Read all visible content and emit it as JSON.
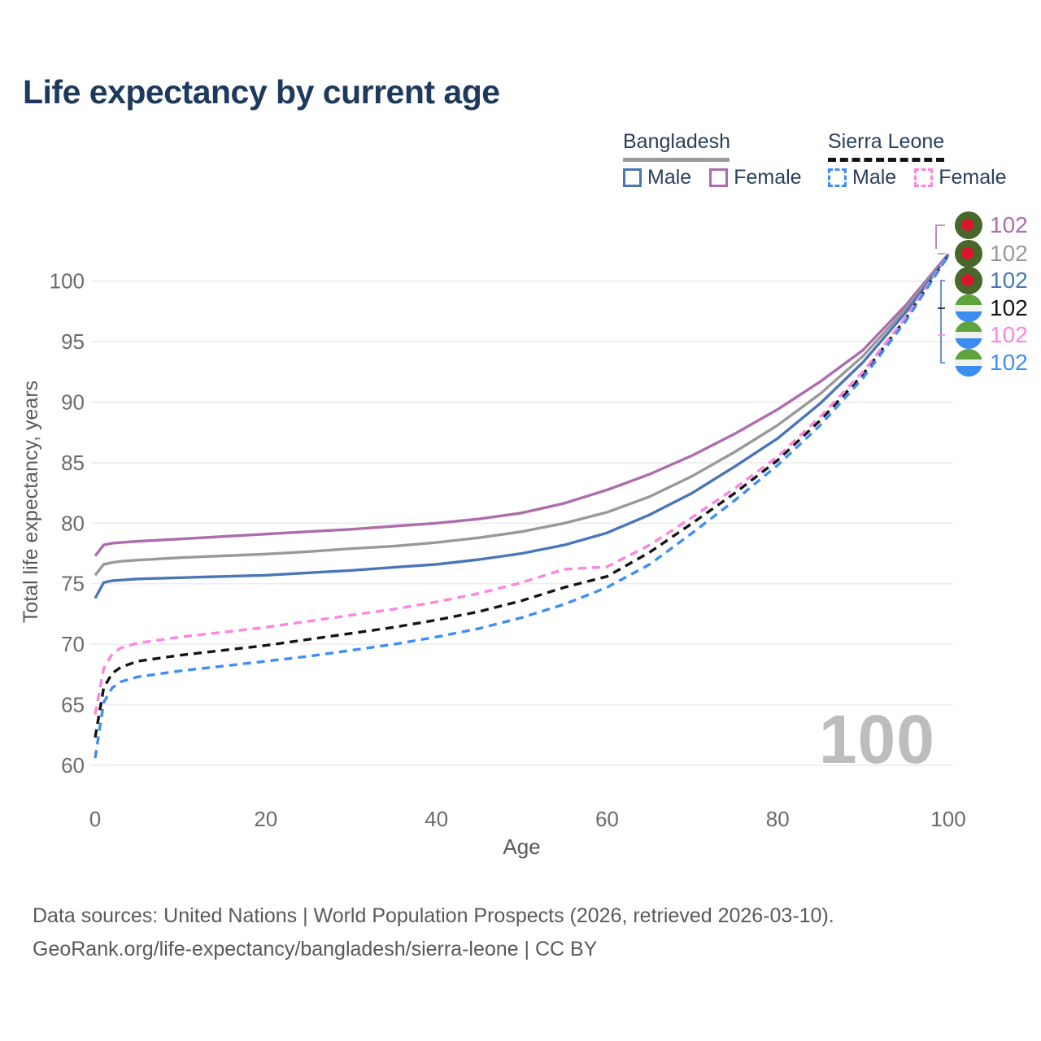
{
  "title": "Life expectancy by current age",
  "legend": {
    "groups": [
      {
        "label": "Bangladesh",
        "line_style": "solid",
        "underline_color": "#9b9b9b",
        "items": [
          {
            "label": "Male",
            "color": "#4a76b8",
            "dashed": false
          },
          {
            "label": "Female",
            "color": "#ad6cad",
            "dashed": false
          }
        ]
      },
      {
        "label": "Sierra Leone",
        "line_style": "dashed",
        "underline_color": "#141414",
        "items": [
          {
            "label": "Male",
            "color": "#3f8ef5",
            "dashed": true
          },
          {
            "label": "Female",
            "color": "#fd85e0",
            "dashed": true
          }
        ]
      }
    ]
  },
  "chart_data": {
    "type": "line",
    "title": "Life expectancy by current age",
    "xlabel": "Age",
    "ylabel": "Total life expectancy, years",
    "xlim": [
      0,
      100
    ],
    "ylim": [
      60,
      102.5
    ],
    "x_ticks": [
      0,
      20,
      40,
      60,
      80,
      100
    ],
    "y_ticks": [
      60,
      65,
      70,
      75,
      80,
      85,
      90,
      95,
      100
    ],
    "grid": "horizontal",
    "legend_position": "top-right",
    "watermark": "100",
    "x": [
      0,
      1,
      2,
      3,
      5,
      10,
      15,
      20,
      25,
      30,
      35,
      40,
      45,
      50,
      55,
      60,
      65,
      70,
      75,
      80,
      85,
      90,
      95,
      100
    ],
    "series": [
      {
        "name": "Bangladesh Female",
        "color": "#ad6cad",
        "dashed": false,
        "flag": "bangladesh-flag-icon",
        "end_label": "102",
        "values": [
          77.3,
          78.2,
          78.35,
          78.4,
          78.5,
          78.7,
          78.9,
          79.1,
          79.3,
          79.5,
          79.75,
          80.0,
          80.35,
          80.85,
          81.65,
          82.75,
          84.05,
          85.6,
          87.4,
          89.4,
          91.7,
          94.3,
          98.0,
          102.25
        ]
      },
      {
        "name": "Bangladesh",
        "color": "#999999",
        "dashed": false,
        "flag": "bangladesh-flag-icon",
        "end_label": "102",
        "values": [
          75.7,
          76.6,
          76.75,
          76.85,
          76.95,
          77.15,
          77.3,
          77.45,
          77.65,
          77.9,
          78.1,
          78.4,
          78.8,
          79.3,
          80.0,
          80.9,
          82.2,
          83.9,
          85.9,
          88.1,
          90.7,
          93.8,
          97.7,
          102.2
        ]
      },
      {
        "name": "Bangladesh Male",
        "color": "#4a76b8",
        "dashed": false,
        "flag": "bangladesh-flag-icon",
        "end_label": "102",
        "values": [
          73.8,
          75.1,
          75.25,
          75.3,
          75.4,
          75.5,
          75.6,
          75.7,
          75.9,
          76.1,
          76.35,
          76.6,
          77.0,
          77.5,
          78.2,
          79.2,
          80.7,
          82.5,
          84.7,
          87.0,
          89.9,
          93.3,
          97.4,
          102.15
        ]
      },
      {
        "name": "Sierra Leone",
        "color": "#141414",
        "dashed": true,
        "flag": "sierra-leone-flag-icon",
        "end_label": "102",
        "values": [
          62.3,
          66.4,
          67.6,
          68.1,
          68.6,
          69.1,
          69.5,
          69.9,
          70.4,
          70.9,
          71.4,
          72.0,
          72.7,
          73.6,
          74.7,
          75.6,
          77.6,
          80.0,
          82.5,
          85.2,
          88.5,
          92.3,
          96.9,
          102.1
        ]
      },
      {
        "name": "Sierra Leone Female",
        "color": "#fd85e0",
        "dashed": true,
        "flag": "sierra-leone-flag-icon",
        "end_label": "102",
        "values": [
          64.2,
          68.0,
          69.2,
          69.7,
          70.1,
          70.6,
          71.0,
          71.4,
          71.9,
          72.4,
          72.9,
          73.5,
          74.2,
          75.1,
          76.2,
          76.4,
          78.2,
          80.5,
          82.9,
          85.5,
          88.8,
          92.5,
          97.0,
          102.15
        ]
      },
      {
        "name": "Sierra Leone Male",
        "color": "#3f8ef5",
        "dashed": true,
        "flag": "sierra-leone-flag-icon",
        "end_label": "102",
        "values": [
          60.6,
          65.2,
          66.4,
          66.9,
          67.3,
          67.8,
          68.2,
          68.6,
          69.0,
          69.5,
          70.0,
          70.6,
          71.3,
          72.2,
          73.3,
          74.7,
          76.6,
          79.2,
          81.9,
          84.8,
          88.1,
          92.0,
          96.7,
          102.1
        ]
      }
    ]
  },
  "footer": {
    "line1": "Data sources: United Nations | World Population Prospects (2026, retrieved 2026-03-10).",
    "line2": "GeoRank.org/life-expectancy/bangladesh/sierra-leone | CC BY"
  }
}
